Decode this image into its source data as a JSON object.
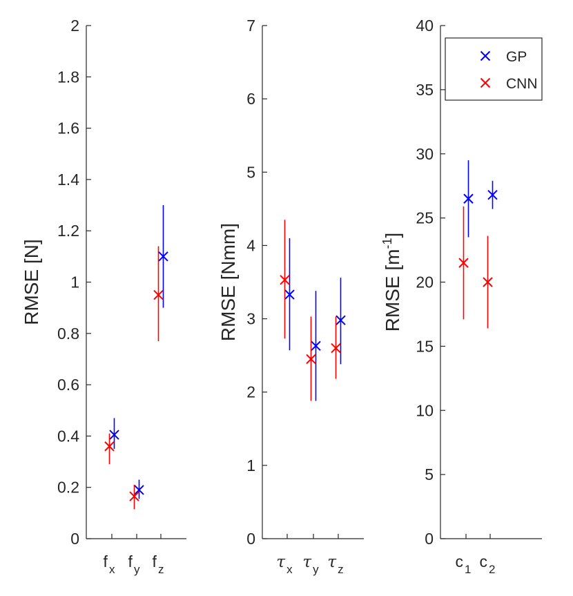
{
  "chart_data": [
    {
      "type": "errorbar",
      "ylabel": "RMSE [N]",
      "ylim": [
        0,
        2
      ],
      "yticks": [
        "0",
        "0.2",
        "0.4",
        "0.6",
        "0.8",
        "1",
        "1.2",
        "1.4",
        "1.6",
        "1.8",
        "2"
      ],
      "categories": [
        {
          "main": "f",
          "sub": "x",
          "greek": false
        },
        {
          "main": "f",
          "sub": "y",
          "greek": false
        },
        {
          "main": "f",
          "sub": "z",
          "greek": false
        }
      ],
      "series": [
        {
          "name": "GP",
          "color": "#0000ff",
          "values": [
            0.405,
            0.19,
            1.1
          ],
          "lower": [
            0.35,
            0.155,
            0.9
          ],
          "upper": [
            0.47,
            0.23,
            1.3
          ]
        },
        {
          "name": "CNN",
          "color": "#ff0000",
          "values": [
            0.36,
            0.165,
            0.95
          ],
          "lower": [
            0.29,
            0.115,
            0.77
          ],
          "upper": [
            0.41,
            0.21,
            1.14
          ]
        }
      ]
    },
    {
      "type": "errorbar",
      "ylabel": "RMSE [Nmm]",
      "ylim": [
        0,
        7
      ],
      "yticks": [
        "0",
        "1",
        "2",
        "3",
        "4",
        "5",
        "6",
        "7"
      ],
      "categories": [
        {
          "main": "τ",
          "sub": "x",
          "greek": true
        },
        {
          "main": "τ",
          "sub": "y",
          "greek": true
        },
        {
          "main": "τ",
          "sub": "z",
          "greek": true
        }
      ],
      "series": [
        {
          "name": "GP",
          "color": "#0000ff",
          "values": [
            3.33,
            2.63,
            2.98
          ],
          "lower": [
            2.57,
            1.88,
            2.38
          ],
          "upper": [
            4.1,
            3.38,
            3.56
          ]
        },
        {
          "name": "CNN",
          "color": "#ff0000",
          "values": [
            3.53,
            2.45,
            2.6
          ],
          "lower": [
            2.73,
            1.88,
            2.18
          ],
          "upper": [
            4.35,
            3.03,
            3.03
          ]
        }
      ]
    },
    {
      "type": "errorbar",
      "ylabel": "RMSE [m",
      "ylabel_sup": "-1",
      "ylabel_end": "]",
      "ylim": [
        0,
        40
      ],
      "yticks": [
        "0",
        "5",
        "10",
        "15",
        "20",
        "25",
        "30",
        "35",
        "40"
      ],
      "categories": [
        {
          "main": "c",
          "sub": "1",
          "greek": false
        },
        {
          "main": "c",
          "sub": "2",
          "greek": false
        }
      ],
      "series": [
        {
          "name": "GP",
          "color": "#0000ff",
          "values": [
            26.5,
            26.8
          ],
          "lower": [
            23.5,
            25.7
          ],
          "upper": [
            29.5,
            27.9
          ]
        },
        {
          "name": "CNN",
          "color": "#ff0000",
          "values": [
            21.5,
            20.0
          ],
          "lower": [
            17.1,
            16.4
          ],
          "upper": [
            25.9,
            23.6
          ]
        }
      ],
      "legend": {
        "position": "top-right",
        "entries": [
          "GP",
          "CNN"
        ]
      }
    }
  ]
}
